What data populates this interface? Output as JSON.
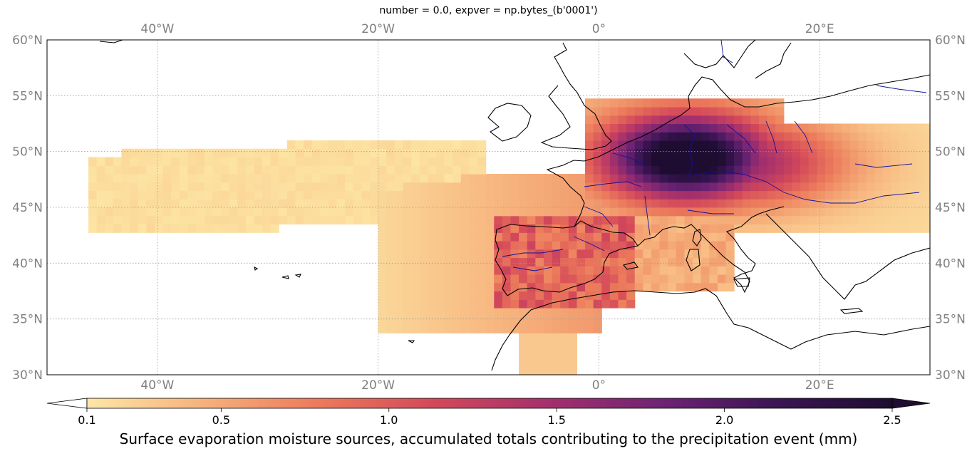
{
  "title": "number = 0.0, expver = np.bytes_(b'0001')",
  "colorbar": {
    "label": "Surface evaporation moisture sources, accumulated totals contributing to the precipitation event (mm)",
    "range": [
      0.1,
      2.5
    ],
    "ticks": [
      {
        "value": 0.1,
        "label": "0.1"
      },
      {
        "value": 0.5,
        "label": "0.5"
      },
      {
        "value": 1.0,
        "label": "1.0"
      },
      {
        "value": 1.5,
        "label": "1.5"
      },
      {
        "value": 2.0,
        "label": "2.0"
      },
      {
        "value": 2.5,
        "label": "2.5"
      }
    ],
    "colormap": "magma_r (spectral-like, light yellow to dark purple)",
    "colors": [
      "#fde7a6",
      "#f6b27c",
      "#ec7b5b",
      "#d4495a",
      "#a5306c",
      "#6e2374",
      "#3a1553",
      "#1e0d30"
    ]
  },
  "map": {
    "lon_range": [
      -50,
      30
    ],
    "lat_range": [
      30,
      60
    ],
    "gridlines": true,
    "lon_ticks": [
      {
        "value": -40,
        "label": "40°W"
      },
      {
        "value": -20,
        "label": "20°W"
      },
      {
        "value": 0,
        "label": "0°"
      },
      {
        "value": 20,
        "label": "20°E"
      }
    ],
    "lat_ticks": [
      {
        "value": 60,
        "label": "60°N"
      },
      {
        "value": 55,
        "label": "55°N"
      },
      {
        "value": 50,
        "label": "50°N"
      },
      {
        "value": 45,
        "label": "45°N"
      },
      {
        "value": 40,
        "label": "40°N"
      },
      {
        "value": 35,
        "label": "35°N"
      },
      {
        "value": 30,
        "label": "30°N"
      }
    ],
    "coastline_color": "#000000",
    "river_color": "#1010a0"
  },
  "chart_data": {
    "type": "heatmap",
    "units": "mm",
    "peak_lon": 8,
    "peak_lat": 49.5,
    "peak_value": 2.5,
    "plumes": [
      {
        "lon": [
          -45,
          -10
        ],
        "lat": [
          42,
          51
        ],
        "level": 0.15
      },
      {
        "lon": [
          -20,
          0
        ],
        "lat": [
          34,
          48
        ],
        "level": 0.4
      },
      {
        "lon": [
          -9,
          3
        ],
        "lat": [
          36,
          44
        ],
        "level": 0.8
      },
      {
        "lon": [
          -1,
          16
        ],
        "lat": [
          45,
          54
        ],
        "level": 1.5
      },
      {
        "lon": [
          5,
          12
        ],
        "lat": [
          47,
          51
        ],
        "level": 2.3
      },
      {
        "lon": [
          10,
          30
        ],
        "lat": [
          43,
          52
        ],
        "level": 0.4
      },
      {
        "lon": [
          0,
          12
        ],
        "lat": [
          38,
          46
        ],
        "level": 0.5
      }
    ]
  }
}
